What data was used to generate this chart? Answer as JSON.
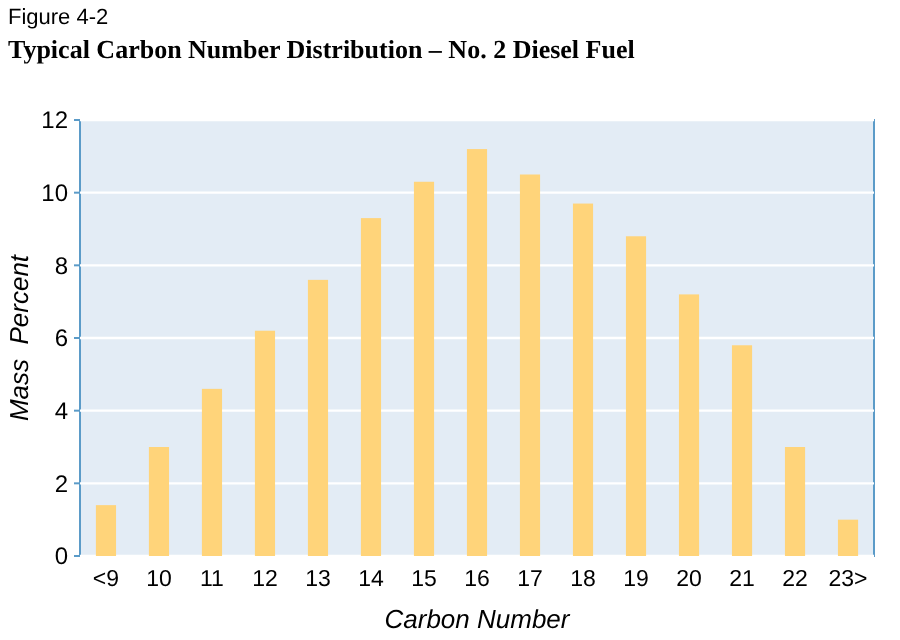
{
  "chart_data": {
    "type": "bar",
    "title": "Typical Carbon Number Distribution – No. 2 Diesel Fuel",
    "annotations": [
      "Figure 4-2"
    ],
    "xlabel": "Carbon Number",
    "ylabel": "Mass  Percent",
    "categories": [
      "<9",
      "10",
      "11",
      "12",
      "13",
      "14",
      "15",
      "16",
      "17",
      "18",
      "19",
      "20",
      "21",
      "22",
      "23>"
    ],
    "values": [
      1.4,
      3.0,
      4.6,
      6.2,
      7.6,
      9.3,
      10.3,
      11.2,
      10.5,
      9.7,
      8.8,
      7.2,
      5.8,
      3.0,
      1.0
    ],
    "color": "#ffd47a",
    "ylim": [
      0,
      12
    ],
    "yticks": [
      0,
      2,
      4,
      6,
      8,
      10,
      12
    ],
    "grid": "y"
  }
}
